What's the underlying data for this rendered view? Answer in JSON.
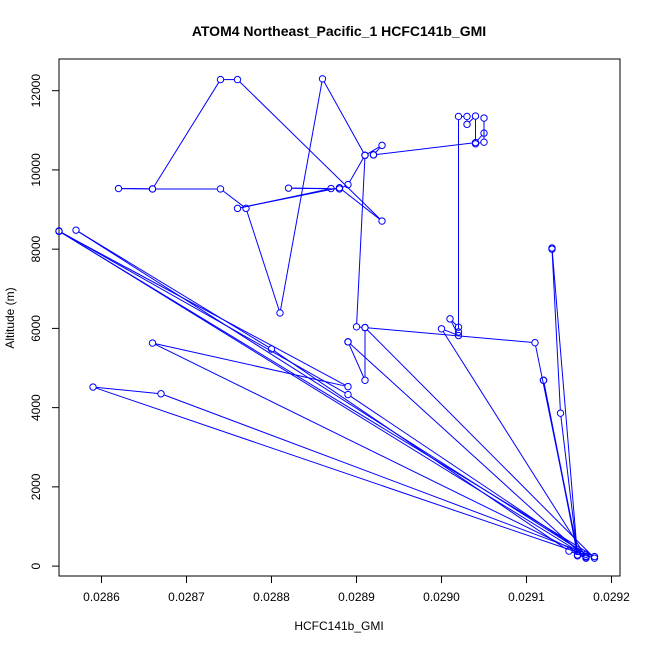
{
  "chart_data": {
    "type": "line",
    "title": "ATOM4 Northeast_Pacific_1 HCFC141b_GMI",
    "xlabel": "HCFC141b_GMI",
    "ylabel": "Altitude (m)",
    "x_ticks": [
      "0.0286",
      "0.0287",
      "0.0288",
      "0.0289",
      "0.0290",
      "0.0291",
      "0.0292"
    ],
    "y_ticks": [
      "0",
      "2000",
      "4000",
      "6000",
      "8000",
      "10000",
      "12000"
    ],
    "xlim": [
      0.02855,
      0.02921
    ],
    "ylim": [
      -250,
      12800
    ],
    "grid": false,
    "legend": "none",
    "series_color": "#0000ff",
    "series": [
      {
        "x": [
          0.02917,
          0.02915,
          0.0288,
          0.02857,
          0.02917,
          0.02889,
          0.02855,
          0.02917,
          0.02866,
          0.02889,
          0.02855,
          0.02918,
          0.02867,
          0.02859,
          0.02918,
          0.02891,
          0.02911,
          0.02916,
          0.02912,
          0.02912,
          0.02916,
          0.02914,
          0.02913,
          0.02913,
          0.02916,
          0.02917,
          0.029,
          0.02902,
          0.02901,
          0.02902,
          0.02902,
          0.02902,
          0.02903,
          0.02903,
          0.02904,
          0.02904,
          0.02905,
          0.02905,
          0.02905,
          0.02904,
          0.02892,
          0.02892,
          0.02893,
          0.02891,
          0.02889,
          0.02888,
          0.02882,
          0.02887,
          0.02876,
          0.02888,
          0.02893,
          0.02876,
          0.02874,
          0.02866,
          0.02862,
          0.02866,
          0.02874,
          0.02877,
          0.02881,
          0.02886,
          0.02891,
          0.0289,
          0.02891,
          0.02891,
          0.02889,
          0.02889,
          0.02917
        ],
        "y": [
          230,
          380,
          5480,
          8480,
          300,
          4330,
          8460,
          250,
          5630,
          4530,
          8450,
          240,
          4350,
          4520,
          200,
          6020,
          5640,
          370,
          4690,
          4690,
          280,
          3860,
          8000,
          8030,
          260,
          230,
          5990,
          5820,
          6240,
          6030,
          5910,
          11350,
          11350,
          11150,
          11360,
          10660,
          10700,
          11310,
          10930,
          10690,
          10380,
          10380,
          10620,
          10370,
          9630,
          9520,
          9540,
          9530,
          9030,
          9550,
          8710,
          12280,
          12280,
          9520,
          9530,
          9520,
          9520,
          9030,
          6390,
          12300,
          10370,
          6040,
          6020,
          4690,
          5660,
          5660,
          200
        ]
      }
    ]
  }
}
